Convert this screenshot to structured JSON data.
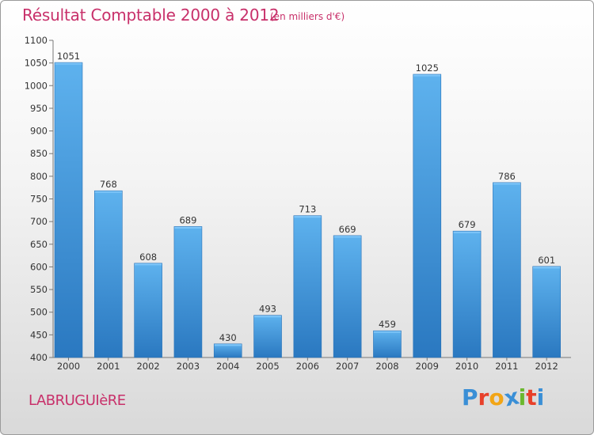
{
  "chart_data": {
    "type": "bar",
    "title": "Résultat Comptable 2000 à 2012",
    "subtitle": "(en milliers d'€)",
    "categories": [
      "2000",
      "2001",
      "2002",
      "2003",
      "2004",
      "2005",
      "2006",
      "2007",
      "2008",
      "2009",
      "2010",
      "2011",
      "2012"
    ],
    "values": [
      1051,
      768,
      608,
      689,
      430,
      493,
      713,
      669,
      459,
      1025,
      679,
      786,
      601
    ],
    "ylim": [
      400,
      1100
    ],
    "yticks": [
      400,
      450,
      500,
      550,
      600,
      650,
      700,
      750,
      800,
      850,
      900,
      950,
      1000,
      1050,
      1100
    ],
    "xlabel": "",
    "ylabel": "",
    "grid": false,
    "bar_color": "#4a9fdf"
  },
  "footer": {
    "commune": "LABRUGUIèRE",
    "logo_letters": [
      "P",
      "r",
      "o",
      "x",
      "i",
      "t",
      "i"
    ],
    "logo_colors": [
      "#3a8fd6",
      "#e8402a",
      "#f2a516",
      "#3a8fd6",
      "#6bb82e",
      "#e8402a",
      "#3a8fd6"
    ]
  }
}
